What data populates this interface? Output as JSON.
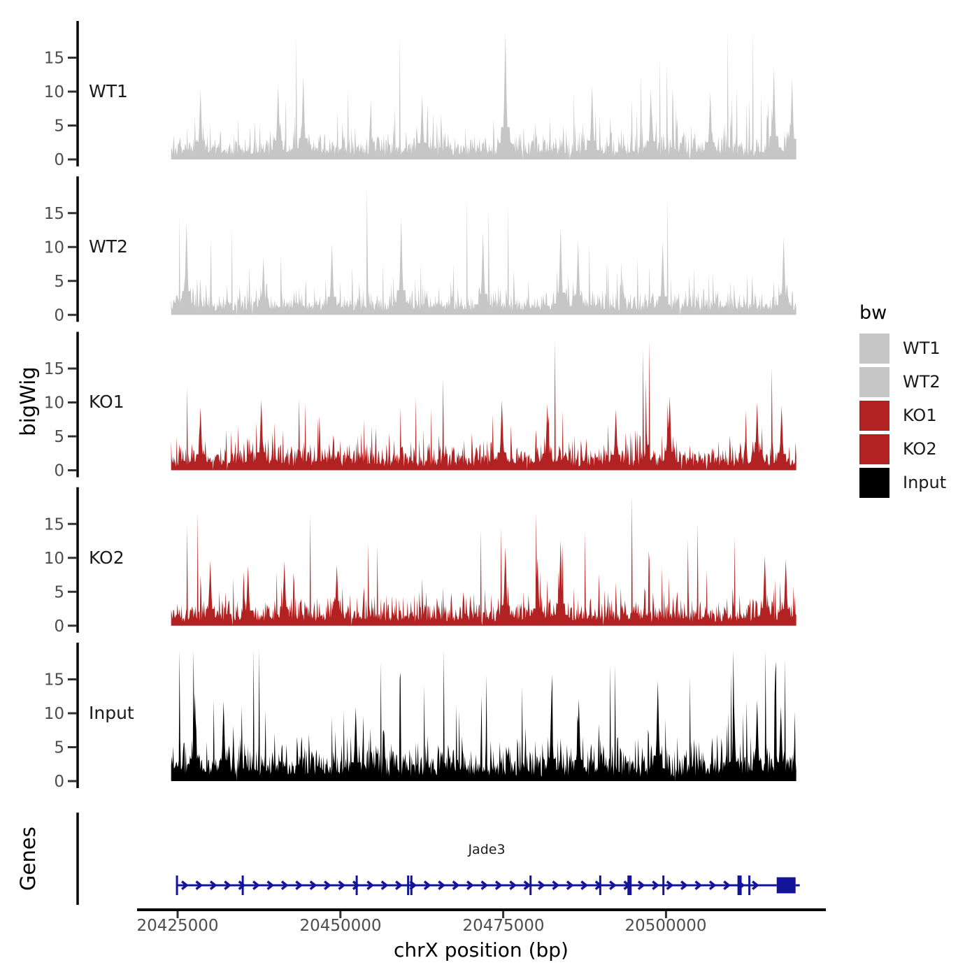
{
  "figure": {
    "background": "#FFFFFF"
  },
  "axes": {
    "y_title": "bigWig",
    "genes_title": "Genes",
    "x_title": "chrX position (bp)",
    "colors": {
      "axis_line": "#000000",
      "tick": "#333333",
      "tick_label": "#4D4D4D",
      "title": "#000000"
    }
  },
  "legend": {
    "title": "bw",
    "items": [
      {
        "label": "WT1",
        "color": "#C6C6C6"
      },
      {
        "label": "WT2",
        "color": "#C6C6C6"
      },
      {
        "label": "KO1",
        "color": "#B22222"
      },
      {
        "label": "KO2",
        "color": "#B22222"
      },
      {
        "label": "Input",
        "color": "#000000"
      }
    ]
  },
  "gene_track": {
    "axis_title": "Genes"
  },
  "chart_data": {
    "type": "area",
    "title": "",
    "xlabel": "chrX position (bp)",
    "ylabel": "bigWig",
    "x_range": [
      20424000,
      20520000
    ],
    "x_ticks": [
      20425000,
      20450000,
      20475000,
      20500000
    ],
    "x_tick_labels": [
      "20425000",
      "20450000",
      "20475000",
      "20500000"
    ],
    "y_ticks": [
      0,
      5,
      10,
      15
    ],
    "y_range": [
      0,
      20
    ],
    "legend_position": "right",
    "grid": false,
    "panels": [
      {
        "name": "WT1",
        "color": "#C6C6C6",
        "baseline_mean": 2.6,
        "noise_seed": 101,
        "major_peaks": [
          [
            20428500,
            10.3
          ],
          [
            20440400,
            11.0
          ],
          [
            20444300,
            12.4
          ],
          [
            20462500,
            9.5
          ],
          [
            20475300,
            18.8
          ],
          [
            20488700,
            11.0
          ],
          [
            20497700,
            10.5
          ],
          [
            20506800,
            10.0
          ],
          [
            20516600,
            13.5
          ],
          [
            20519400,
            12.0
          ]
        ]
      },
      {
        "name": "WT2",
        "color": "#C6C6C6",
        "baseline_mean": 2.5,
        "noise_seed": 202,
        "major_peaks": [
          [
            20426400,
            13.8
          ],
          [
            20438200,
            8.5
          ],
          [
            20448700,
            10.5
          ],
          [
            20459300,
            14.3
          ],
          [
            20471900,
            12.2
          ],
          [
            20483800,
            13.0
          ],
          [
            20486500,
            11.0
          ],
          [
            20499500,
            10.8
          ],
          [
            20518100,
            11.5
          ]
        ]
      },
      {
        "name": "KO1",
        "color": "#B22222",
        "baseline_mean": 2.7,
        "noise_seed": 303,
        "major_peaks": [
          [
            20428500,
            9.3
          ],
          [
            20437900,
            10.4
          ],
          [
            20474800,
            10.3
          ],
          [
            20481800,
            9.8
          ],
          [
            20492300,
            9.0
          ],
          [
            20500600,
            10.9
          ],
          [
            20514000,
            10.0
          ],
          [
            20517700,
            9.5
          ]
        ]
      },
      {
        "name": "KO2",
        "color": "#B22222",
        "baseline_mean": 2.6,
        "noise_seed": 404,
        "major_peaks": [
          [
            20430000,
            9.6
          ],
          [
            20435800,
            8.8
          ],
          [
            20441400,
            9.5
          ],
          [
            20449500,
            9.0
          ],
          [
            20475300,
            11.6
          ],
          [
            20480300,
            10.0
          ],
          [
            20483800,
            12.6
          ],
          [
            20515200,
            10.3
          ],
          [
            20518400,
            9.8
          ]
        ]
      },
      {
        "name": "Input",
        "color": "#000000",
        "baseline_mean": 3.4,
        "noise_seed": 505,
        "major_peaks": [
          [
            20427600,
            12.9
          ],
          [
            20432100,
            11.8
          ],
          [
            20452400,
            10.9
          ],
          [
            20482400,
            13.0
          ],
          [
            20486600,
            12.2
          ],
          [
            20498700,
            14.8
          ],
          [
            20510500,
            11.3
          ],
          [
            20514000,
            12.0
          ],
          [
            20517600,
            11.0
          ]
        ]
      }
    ],
    "gene_annotation": {
      "name": "Jade3",
      "strand": "+",
      "start": 20424900,
      "end": 20519900,
      "color": "#14149B",
      "exons": [
        20424900,
        20435000,
        20452500,
        20460400,
        20460900,
        20479200,
        20489900,
        20494400,
        20499600,
        20511300,
        20512800
      ],
      "thick_exons": [
        20494400,
        20511300
      ],
      "terminal_exon": {
        "start": 20517000,
        "end": 20519900
      }
    }
  }
}
